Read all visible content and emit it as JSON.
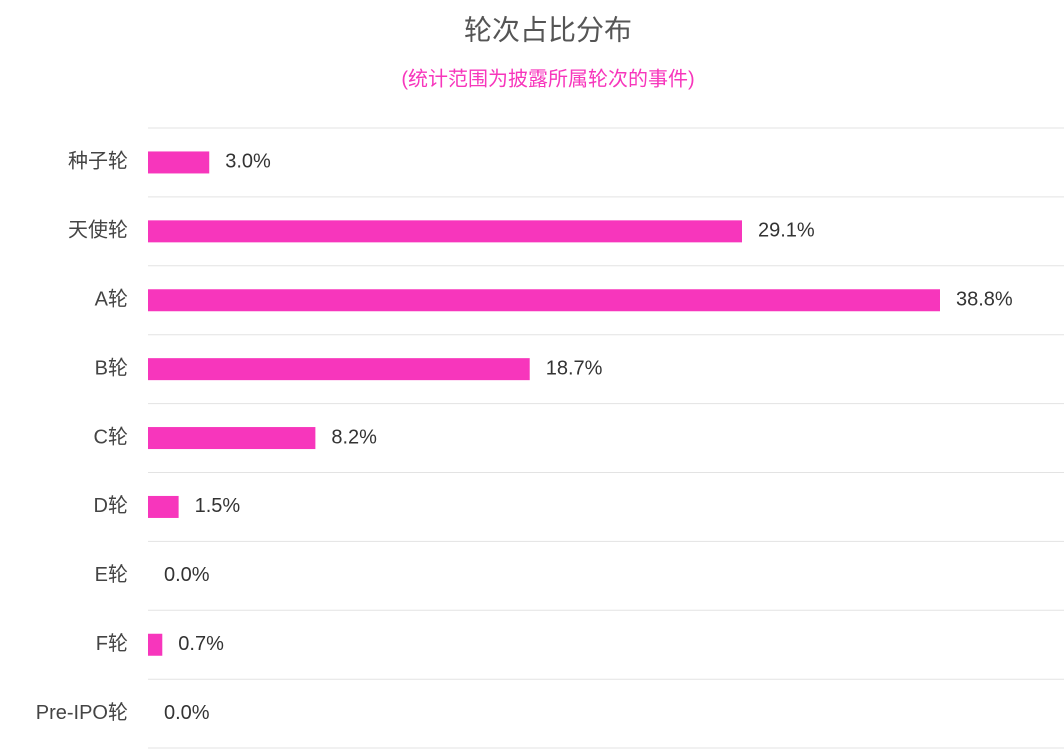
{
  "chart_data": {
    "type": "bar",
    "orientation": "horizontal",
    "title": "轮次占比分布",
    "subtitle": "(统计范围为披露所属轮次的事件)",
    "categories": [
      "种子轮",
      "天使轮",
      "A轮",
      "B轮",
      "C轮",
      "D轮",
      "E轮",
      "F轮",
      "Pre-IPO轮"
    ],
    "values": [
      3.0,
      29.1,
      38.8,
      18.7,
      8.2,
      1.5,
      0.0,
      0.7,
      0.0
    ],
    "value_labels": [
      "3.0%",
      "29.1%",
      "38.8%",
      "18.7%",
      "8.2%",
      "1.5%",
      "0.0%",
      "0.7%",
      "0.0%"
    ],
    "color": "#f736bc"
  }
}
